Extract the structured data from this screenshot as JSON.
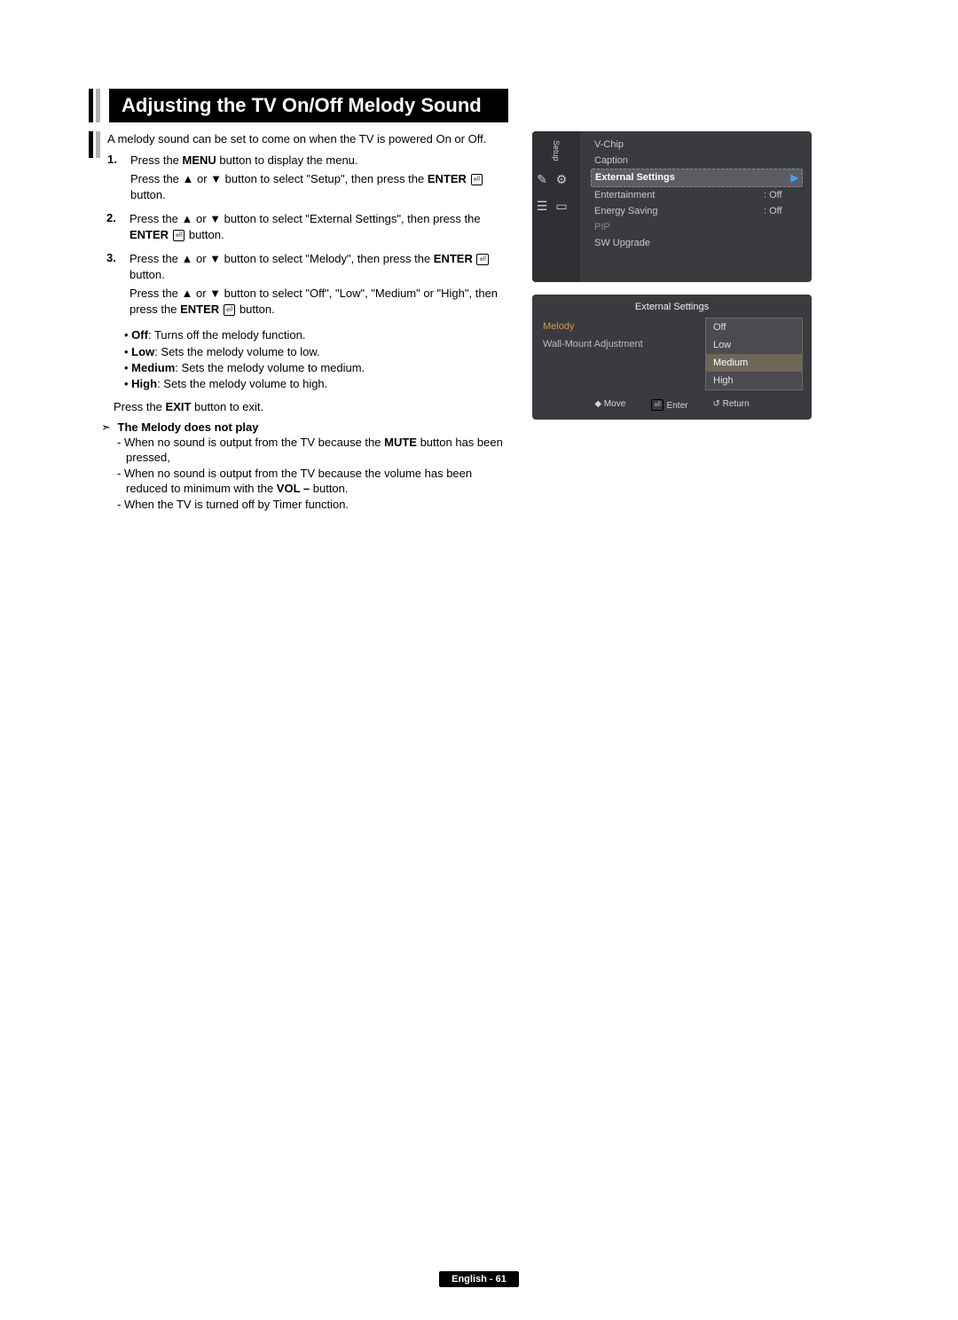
{
  "header": {
    "title": "Adjusting the TV On/Off Melody Sound"
  },
  "intro": "A melody sound can be set to come on when the TV is powered On or Off.",
  "steps": [
    {
      "num": "1.",
      "lines": [
        "Press the <b>MENU</b> button to display the menu.",
        "Press the ▲ or ▼ button to select \"Setup\", then press the <b>ENTER</b> <span class='enter-icon'>⏎</span> button."
      ]
    },
    {
      "num": "2.",
      "lines": [
        "Press the ▲ or ▼ button to select \"External Settings\", then press the <b>ENTER</b> <span class='enter-icon'>⏎</span> button."
      ]
    },
    {
      "num": "3.",
      "lines": [
        "Press the ▲ or ▼ button to select \"Melody\", then press the <b>ENTER</b> <span class='enter-icon'>⏎</span> button.",
        "Press the ▲ or ▼ button to select \"Off\", \"Low\", \"Medium\" or \"High\", then press the <b>ENTER</b> <span class='enter-icon'>⏎</span> button."
      ]
    }
  ],
  "bullets": [
    {
      "term": "Off",
      "desc": ": Turns off the melody function."
    },
    {
      "term": "Low",
      "desc": ": Sets the melody volume to low."
    },
    {
      "term": "Medium",
      "desc": ": Sets the melody volume to medium."
    },
    {
      "term": "High",
      "desc": ": Sets the melody volume to high."
    }
  ],
  "exit_line_pre": "Press the ",
  "exit_line_bold": "EXIT",
  "exit_line_post": " button to exit.",
  "note": {
    "marker": "➣",
    "title": "The Melody does not play",
    "items": [
      "When no sound is output from the TV because the <b>MUTE</b> button has been pressed,",
      "When no sound is output from the TV because the volume has been reduced to minimum with the <b>VOL –</b> button.",
      "When the TV is turned off by Timer function."
    ]
  },
  "osd1": {
    "side_label": "Setup",
    "icons": [
      "✎",
      "⚙",
      "☰",
      "▭"
    ],
    "rows": [
      {
        "label": "V-Chip",
        "val": "",
        "class": ""
      },
      {
        "label": "Caption",
        "val": "",
        "class": ""
      },
      {
        "label": "External Settings",
        "val": "▶",
        "class": "hl"
      },
      {
        "label": "Entertainment",
        "val": ": Off",
        "class": ""
      },
      {
        "label": "Energy Saving",
        "val": ": Off",
        "class": ""
      },
      {
        "label": "PIP",
        "val": "",
        "class": "dim"
      },
      {
        "label": "SW Upgrade",
        "val": "",
        "class": ""
      }
    ]
  },
  "osd2": {
    "title": "External Settings",
    "left_rows": [
      {
        "label": "Melody",
        "class": "sel"
      },
      {
        "label": "Wall-Mount Adjustment",
        "class": ""
      }
    ],
    "options": [
      {
        "label": "Off",
        "class": ""
      },
      {
        "label": "Low",
        "class": ""
      },
      {
        "label": "Medium",
        "class": "sel"
      },
      {
        "label": "High",
        "class": ""
      }
    ],
    "footer": {
      "move": "◆ Move",
      "enter": "⏎ Enter",
      "return": "↺ Return"
    }
  },
  "footer": "English - 61"
}
